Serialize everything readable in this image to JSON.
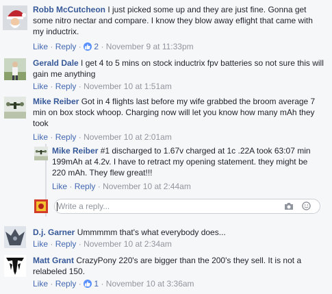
{
  "actions": {
    "like_label": "Like",
    "reply_label": "Reply",
    "separator": "·"
  },
  "comments": [
    {
      "author": "Robb McCutcheon",
      "text": "I just picked some up and they are just fine. Gonna get some nitro nectar and compare. I know they blow away eflight that came with my inductrix.",
      "like_count": "2",
      "timestamp": "November 9 at 11:33pm"
    },
    {
      "author": "Gerald Dale",
      "text": "I get 4 to 5 mins on stock inductrix fpv batteries so not sure this will gain me anything",
      "timestamp": "November 10 at 1:51am"
    },
    {
      "author": "Mike Reiber",
      "text": "Got in 4 flights last before my wife grabbed the broom average 7 min on box stock whoop. Charging now will let you know how many mAh they took",
      "timestamp": "November 10 at 2:01am"
    },
    {
      "author": "Mike Reiber",
      "text": "#1 discharged to 1.67v charged at 1c .22A took 63:07 min 199mAh at 4.2v. I have to retract my opening statement. they might be 220 mAh. They flew great!!!",
      "timestamp": "November 10 at 2:44am"
    },
    {
      "author": "D.j. Garner",
      "text": "Ummmmm that's what everybody does...",
      "timestamp": "November 10 at 2:34am"
    },
    {
      "author": "Matt Grant",
      "text": "CrazyPony 220's are bigger than the 200's they sell. It is not a relabeled 150.",
      "like_count": "1",
      "timestamp": "November 10 at 3:36am"
    }
  ],
  "reply_box": {
    "placeholder": "Write a reply..."
  },
  "colors": {
    "link": "#4267b2",
    "author": "#365899",
    "meta": "#90949c",
    "background": "#f6f7f9",
    "like_badge": "#5890ff"
  }
}
